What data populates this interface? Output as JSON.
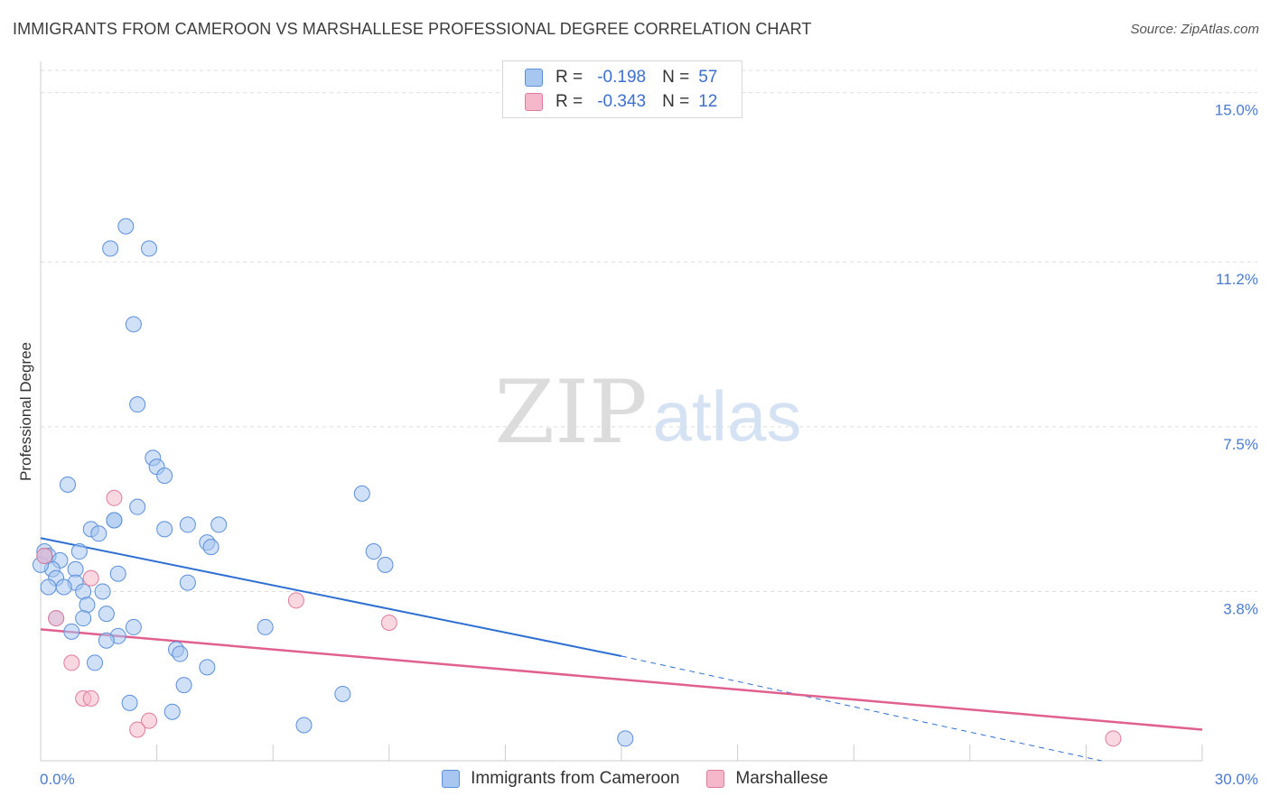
{
  "title": "IMMIGRANTS FROM CAMEROON VS MARSHALLESE PROFESSIONAL DEGREE CORRELATION CHART",
  "source": "Source: ZipAtlas.com",
  "watermark": {
    "zip": "ZIP",
    "atlas": "atlas"
  },
  "colors": {
    "blue_fill": "#a8c7f0",
    "blue_stroke": "#5b8fd9",
    "blue_line": "#2e6fd2",
    "pink_fill": "#f5b8cb",
    "pink_stroke": "#e07a9b",
    "pink_line": "#e0608f",
    "axis_text": "#4a7bd0",
    "grid": "#dddddd"
  },
  "legend": {
    "rows": [
      {
        "r_label": "R =",
        "r_value": "-0.198",
        "n_label": "N =",
        "n_value": "57",
        "color": "#a8c7f0",
        "border": "#5b8fd9"
      },
      {
        "r_label": "R =",
        "r_value": "-0.343",
        "n_label": "N =",
        "n_value": "12",
        "color": "#f5b8cb",
        "border": "#e07a9b"
      }
    ]
  },
  "bottom_legend": [
    {
      "label": "Immigrants from Cameroon",
      "color": "#a8c7f0",
      "border": "#5b8fd9"
    },
    {
      "label": "Marshallese",
      "color": "#f5b8cb",
      "border": "#e07a9b"
    }
  ],
  "chart_data": {
    "type": "scatter",
    "title": "IMMIGRANTS FROM CAMEROON VS MARSHALLESE PROFESSIONAL DEGREE CORRELATION CHART",
    "xlabel": "",
    "ylabel": "Professional Degree",
    "xlim": [
      0,
      30
    ],
    "ylim": [
      0,
      15.5
    ],
    "x_tick_labels": [
      {
        "value": 0,
        "label": "0.0%"
      },
      {
        "value": 30,
        "label": "30.0%"
      }
    ],
    "y_tick_labels": [
      {
        "value": 3.8,
        "label": "3.8%"
      },
      {
        "value": 7.5,
        "label": "7.5%"
      },
      {
        "value": 11.2,
        "label": "11.2%"
      },
      {
        "value": 15.0,
        "label": "15.0%"
      }
    ],
    "x_minor_ticks": [
      3,
      6,
      9,
      12,
      15,
      18,
      21,
      24,
      27,
      30
    ],
    "grid": true,
    "series": [
      {
        "name": "Immigrants from Cameroon",
        "points": [
          [
            2.2,
            12.0
          ],
          [
            1.8,
            11.5
          ],
          [
            2.8,
            11.5
          ],
          [
            2.4,
            9.8
          ],
          [
            2.5,
            8.0
          ],
          [
            2.9,
            6.8
          ],
          [
            3.0,
            6.6
          ],
          [
            3.2,
            6.4
          ],
          [
            0.7,
            6.2
          ],
          [
            2.5,
            5.7
          ],
          [
            8.3,
            6.0
          ],
          [
            1.3,
            5.2
          ],
          [
            1.5,
            5.1
          ],
          [
            1.9,
            5.4
          ],
          [
            1.9,
            5.4
          ],
          [
            3.2,
            5.2
          ],
          [
            3.8,
            5.3
          ],
          [
            4.6,
            5.3
          ],
          [
            4.3,
            4.9
          ],
          [
            4.4,
            4.8
          ],
          [
            0.1,
            4.7
          ],
          [
            0.2,
            4.6
          ],
          [
            0.5,
            4.5
          ],
          [
            1.0,
            4.7
          ],
          [
            8.6,
            4.7
          ],
          [
            8.9,
            4.4
          ],
          [
            0.3,
            4.3
          ],
          [
            0.9,
            4.3
          ],
          [
            2.0,
            4.2
          ],
          [
            0.4,
            4.1
          ],
          [
            0.9,
            4.0
          ],
          [
            3.8,
            4.0
          ],
          [
            0.2,
            3.9
          ],
          [
            0.6,
            3.9
          ],
          [
            1.1,
            3.8
          ],
          [
            1.6,
            3.8
          ],
          [
            1.2,
            3.5
          ],
          [
            1.7,
            3.3
          ],
          [
            0.4,
            3.2
          ],
          [
            1.1,
            3.2
          ],
          [
            2.4,
            3.0
          ],
          [
            5.8,
            3.0
          ],
          [
            0.8,
            2.9
          ],
          [
            2.0,
            2.8
          ],
          [
            1.7,
            2.7
          ],
          [
            3.5,
            2.5
          ],
          [
            3.6,
            2.4
          ],
          [
            1.4,
            2.2
          ],
          [
            4.3,
            2.1
          ],
          [
            3.7,
            1.7
          ],
          [
            7.8,
            1.5
          ],
          [
            2.3,
            1.3
          ],
          [
            3.4,
            1.1
          ],
          [
            6.8,
            0.8
          ],
          [
            15.1,
            0.5
          ],
          [
            0.0,
            4.4
          ],
          [
            0.1,
            4.6
          ]
        ],
        "trend": {
          "x_solid": [
            0,
            15
          ],
          "y_solid": [
            5.0,
            2.35
          ],
          "x_dash": [
            15,
            27.4
          ],
          "y_dash": [
            2.35,
            0.0
          ]
        }
      },
      {
        "name": "Marshallese",
        "points": [
          [
            1.9,
            5.9
          ],
          [
            0.1,
            4.6
          ],
          [
            1.3,
            4.1
          ],
          [
            6.6,
            3.6
          ],
          [
            9.0,
            3.1
          ],
          [
            0.4,
            3.2
          ],
          [
            0.8,
            2.2
          ],
          [
            1.1,
            1.4
          ],
          [
            1.3,
            1.4
          ],
          [
            2.8,
            0.9
          ],
          [
            2.5,
            0.7
          ],
          [
            27.7,
            0.5
          ]
        ],
        "trend": {
          "x_solid": [
            0,
            30
          ],
          "y_solid": [
            2.95,
            0.7
          ]
        }
      }
    ]
  }
}
